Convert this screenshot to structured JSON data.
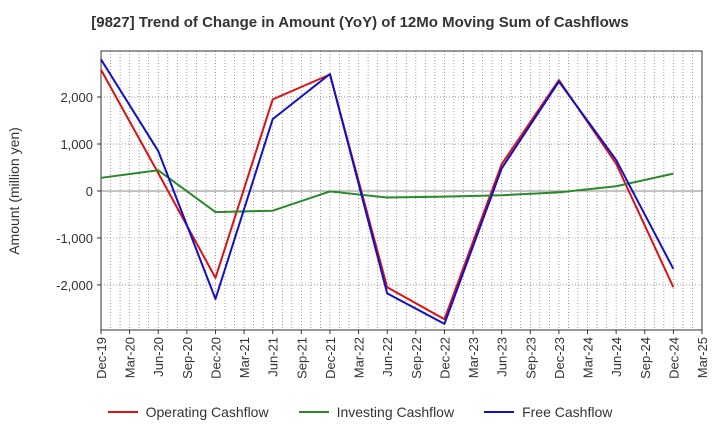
{
  "chart_data": {
    "type": "line",
    "title": "[9827]  Trend of Change in Amount (YoY) of 12Mo Moving Sum of Cashflows",
    "ylabel": "Amount (million yen)",
    "xlabel": "",
    "ylim": [
      -2960,
      2980
    ],
    "yticks": [
      2000,
      1000,
      0,
      -1000,
      -2000
    ],
    "ytick_labels": [
      "2,000",
      "1,000",
      "0",
      "-1,000",
      "-2,000"
    ],
    "categories": [
      "Dec-19",
      "Mar-20",
      "Jun-20",
      "Sep-20",
      "Dec-20",
      "Mar-21",
      "Jun-21",
      "Sep-21",
      "Dec-21",
      "Mar-22",
      "Jun-22",
      "Sep-22",
      "Dec-22",
      "Mar-23",
      "Jun-23",
      "Sep-23",
      "Dec-23",
      "Mar-24",
      "Jun-24",
      "Sep-24",
      "Dec-24",
      "Mar-25"
    ],
    "grid": true,
    "series": [
      {
        "name": "Operating Cashflow",
        "color": "#dd1111",
        "values": [
          2580,
          null,
          380,
          null,
          -1850,
          null,
          1950,
          null,
          2480,
          null,
          -2050,
          null,
          -2730,
          null,
          570,
          null,
          2360,
          null,
          580,
          null,
          -2050,
          null
        ]
      },
      {
        "name": "Investing Cashflow",
        "color": "#2a8a2a",
        "values": [
          280,
          null,
          440,
          null,
          -450,
          null,
          -420,
          null,
          -10,
          null,
          -140,
          null,
          -120,
          null,
          -90,
          null,
          -30,
          null,
          100,
          null,
          370,
          null
        ]
      },
      {
        "name": "Free Cashflow",
        "color": "#1010cc",
        "values": [
          2800,
          null,
          850,
          null,
          -2300,
          null,
          1530,
          null,
          2490,
          null,
          -2180,
          null,
          -2830,
          null,
          480,
          null,
          2330,
          null,
          660,
          null,
          -1660,
          null
        ]
      }
    ],
    "legend": {
      "position": "bottom",
      "items": [
        "Operating Cashflow",
        "Investing Cashflow",
        "Free Cashflow"
      ]
    }
  }
}
